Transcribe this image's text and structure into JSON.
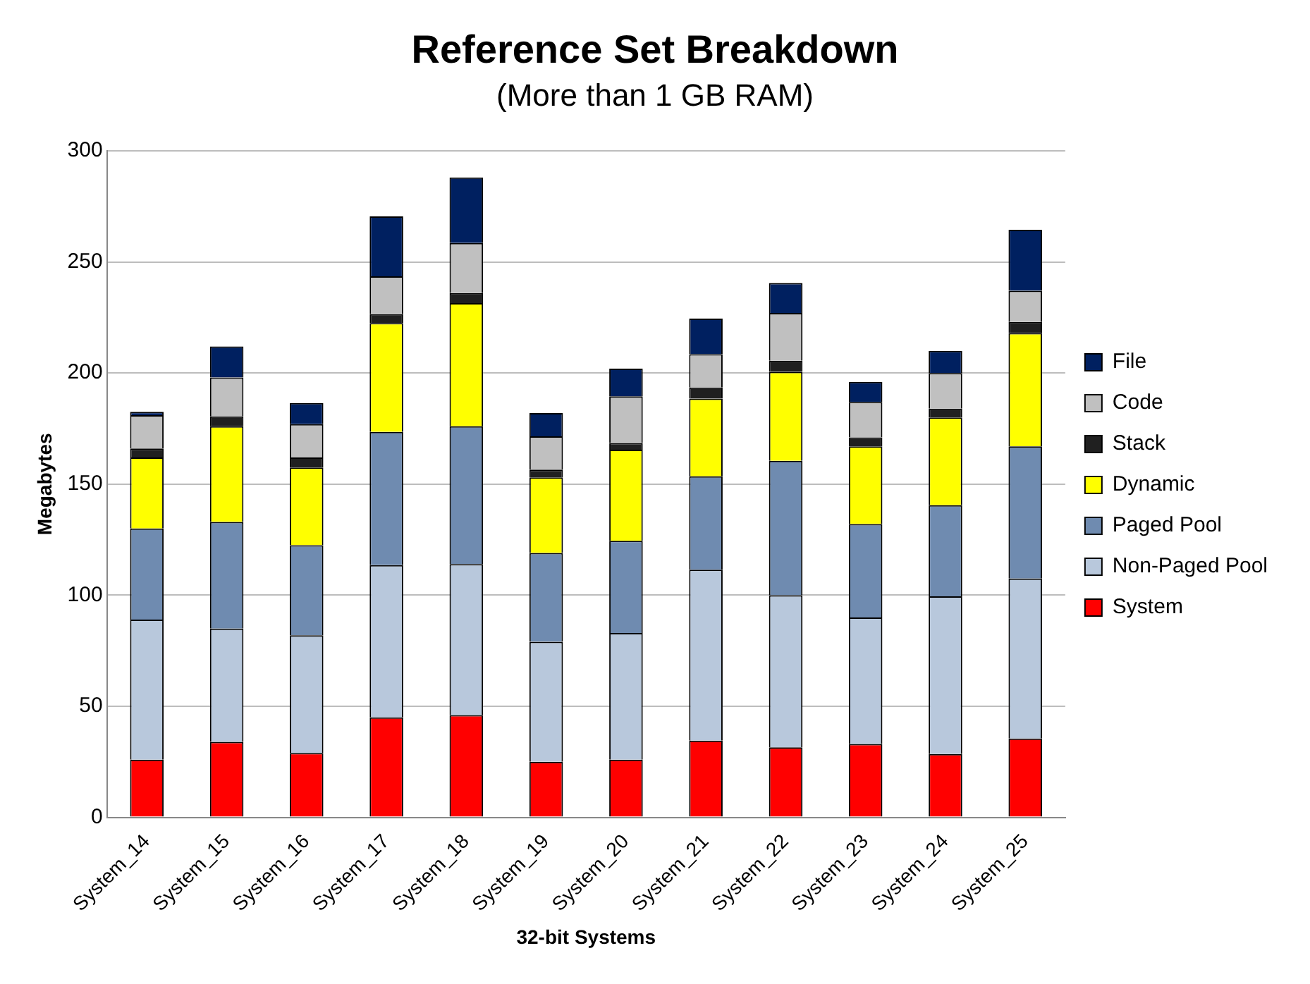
{
  "chart_data": {
    "type": "bar",
    "title": "Reference Set Breakdown",
    "subtitle": "(More than 1 GB RAM)",
    "xlabel": "32-bit Systems",
    "ylabel": "Megabytes",
    "categories": [
      "System_14",
      "System_15",
      "System_16",
      "System_17",
      "System_18",
      "System_19",
      "System_20",
      "System_21",
      "System_22",
      "System_23",
      "System_24",
      "System_25"
    ],
    "stacked": true,
    "ylim": [
      0,
      300
    ],
    "yticks": [
      0,
      50,
      100,
      150,
      200,
      250,
      300
    ],
    "grid": "y",
    "legend": "right",
    "series": [
      {
        "name": "System",
        "color": "#ff0000",
        "values": [
          26,
          34,
          29,
          45,
          46,
          25,
          26,
          34.5,
          31.5,
          33,
          28.5,
          35.5
        ]
      },
      {
        "name": "Non-Paged Pool",
        "color": "#b8c8dc",
        "values": [
          63,
          51,
          53,
          68.5,
          68,
          54,
          57,
          77,
          68.5,
          57,
          71,
          72
        ]
      },
      {
        "name": "Paged Pool",
        "color": "#6f8bb0",
        "values": [
          41,
          48,
          40.5,
          60,
          62,
          40,
          41.5,
          42,
          60.5,
          42,
          41,
          59.5
        ]
      },
      {
        "name": "Dynamic",
        "color": "#ffff00",
        "values": [
          32,
          43,
          35,
          49,
          55.5,
          34,
          41,
          35,
          40,
          35,
          39.5,
          51
        ]
      },
      {
        "name": "Stack",
        "color": "#202020",
        "values": [
          4,
          4.5,
          4.5,
          4,
          4.5,
          3.5,
          3,
          5,
          5,
          4,
          4,
          5
        ]
      },
      {
        "name": "Code",
        "color": "#c0c0c0",
        "values": [
          15,
          17.5,
          15,
          17,
          22.5,
          15,
          21,
          15,
          21.5,
          16,
          16,
          14
        ]
      },
      {
        "name": "File",
        "color": "#002060",
        "values": [
          1.5,
          14,
          9.5,
          27,
          29.5,
          10.5,
          12.5,
          16,
          13.5,
          9,
          10,
          27.5
        ]
      }
    ]
  }
}
